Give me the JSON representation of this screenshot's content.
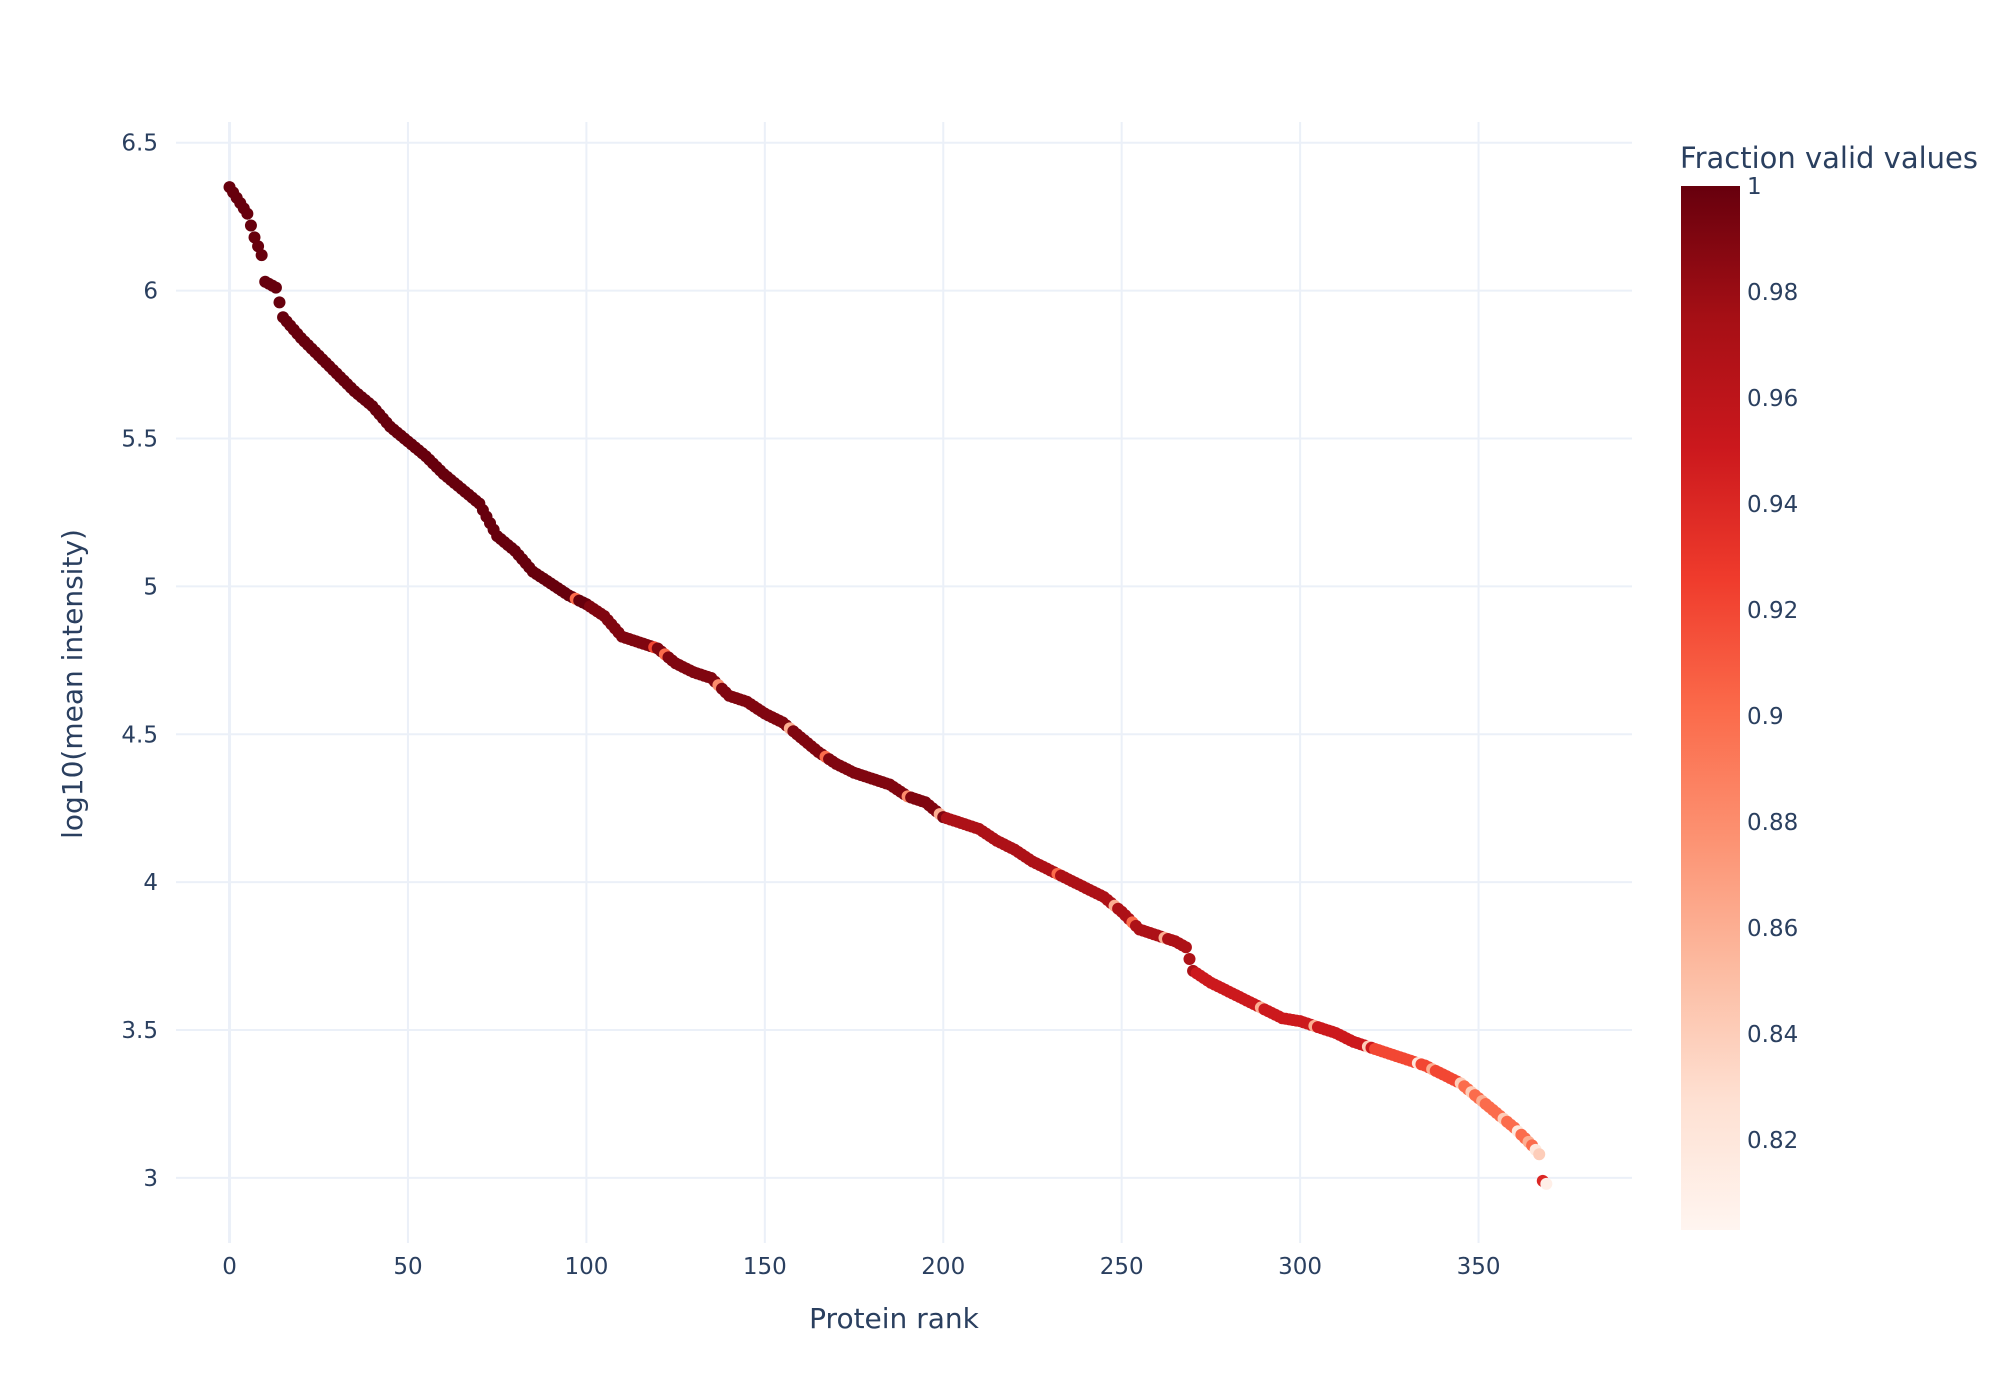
{
  "chart_data": {
    "type": "scatter",
    "title": "",
    "xlabel": "Protein rank",
    "ylabel": "log10(mean intensity)",
    "xlim": [
      -15,
      393
    ],
    "ylim": [
      2.78,
      6.57
    ],
    "x_ticks": [
      0,
      50,
      100,
      150,
      200,
      250,
      300,
      350
    ],
    "y_ticks": [
      3,
      3.5,
      4,
      4.5,
      5,
      5.5,
      6,
      6.5
    ],
    "x_tick_labels": [
      "0",
      "50",
      "100",
      "150",
      "200",
      "250",
      "300",
      "350"
    ],
    "y_tick_labels": [
      "3",
      "3.5",
      "4",
      "4.5",
      "5",
      "5.5",
      "6",
      "6.5"
    ],
    "colorbar": {
      "title": "Fraction valid values",
      "range": [
        0.803,
        1.0
      ],
      "ticks": [
        0.82,
        0.84,
        0.86,
        0.88,
        0.9,
        0.92,
        0.94,
        0.96,
        0.98,
        1
      ],
      "tick_labels": [
        "0.82",
        "0.84",
        "0.86",
        "0.88",
        "0.9",
        "0.92",
        "0.94",
        "0.96",
        "0.98",
        "1"
      ],
      "colorscale": [
        "#fff5f0",
        "#fee0d2",
        "#fcbba1",
        "#fc9272",
        "#fb6a4a",
        "#ef3b2c",
        "#cb181d",
        "#a50f15",
        "#67000d"
      ]
    },
    "grid": true,
    "legend": "colorbar-right",
    "curve_anchors": [
      [
        0,
        6.35
      ],
      [
        5,
        6.26
      ],
      [
        7,
        6.18
      ],
      [
        9,
        6.12
      ],
      [
        10,
        6.03
      ],
      [
        13,
        6.01
      ],
      [
        15,
        5.91
      ],
      [
        20,
        5.84
      ],
      [
        25,
        5.78
      ],
      [
        30,
        5.72
      ],
      [
        35,
        5.66
      ],
      [
        40,
        5.61
      ],
      [
        45,
        5.54
      ],
      [
        50,
        5.49
      ],
      [
        55,
        5.44
      ],
      [
        60,
        5.38
      ],
      [
        65,
        5.33
      ],
      [
        70,
        5.28
      ],
      [
        75,
        5.17
      ],
      [
        80,
        5.12
      ],
      [
        85,
        5.05
      ],
      [
        90,
        5.01
      ],
      [
        95,
        4.97
      ],
      [
        100,
        4.94
      ],
      [
        105,
        4.9
      ],
      [
        110,
        4.83
      ],
      [
        115,
        4.81
      ],
      [
        120,
        4.79
      ],
      [
        125,
        4.74
      ],
      [
        130,
        4.71
      ],
      [
        135,
        4.69
      ],
      [
        140,
        4.63
      ],
      [
        145,
        4.61
      ],
      [
        150,
        4.57
      ],
      [
        155,
        4.54
      ],
      [
        160,
        4.49
      ],
      [
        165,
        4.44
      ],
      [
        170,
        4.4
      ],
      [
        175,
        4.37
      ],
      [
        180,
        4.35
      ],
      [
        185,
        4.33
      ],
      [
        190,
        4.29
      ],
      [
        195,
        4.27
      ],
      [
        200,
        4.22
      ],
      [
        205,
        4.2
      ],
      [
        210,
        4.18
      ],
      [
        215,
        4.14
      ],
      [
        220,
        4.11
      ],
      [
        225,
        4.07
      ],
      [
        230,
        4.04
      ],
      [
        235,
        4.01
      ],
      [
        240,
        3.98
      ],
      [
        245,
        3.95
      ],
      [
        250,
        3.9
      ],
      [
        255,
        3.84
      ],
      [
        260,
        3.82
      ],
      [
        265,
        3.8
      ],
      [
        268,
        3.78
      ],
      [
        270,
        3.7
      ],
      [
        275,
        3.66
      ],
      [
        280,
        3.63
      ],
      [
        285,
        3.6
      ],
      [
        290,
        3.57
      ],
      [
        295,
        3.54
      ],
      [
        300,
        3.53
      ],
      [
        305,
        3.51
      ],
      [
        310,
        3.49
      ],
      [
        315,
        3.46
      ],
      [
        320,
        3.44
      ],
      [
        325,
        3.42
      ],
      [
        330,
        3.4
      ],
      [
        335,
        3.38
      ],
      [
        340,
        3.35
      ],
      [
        345,
        3.32
      ],
      [
        350,
        3.27
      ],
      [
        355,
        3.22
      ],
      [
        360,
        3.17
      ],
      [
        365,
        3.11
      ],
      [
        367,
        3.08
      ],
      [
        368,
        2.99
      ],
      [
        369,
        2.98
      ]
    ],
    "fraction_segments": [
      {
        "range": [
          0,
          100
        ],
        "fraction": 1.0
      },
      {
        "range": [
          101,
          200
        ],
        "fraction": 0.99
      },
      {
        "range": [
          201,
          270
        ],
        "fraction": 0.97
      },
      {
        "range": [
          271,
          320
        ],
        "fraction": 0.95
      },
      {
        "range": [
          321,
          345
        ],
        "fraction": 0.92
      },
      {
        "range": [
          346,
          369
        ],
        "fraction": 0.9
      }
    ],
    "highlight_points": [
      {
        "x": 97,
        "fraction": 0.9
      },
      {
        "x": 119,
        "fraction": 0.92
      },
      {
        "x": 122,
        "fraction": 0.9
      },
      {
        "x": 137,
        "fraction": 0.88
      },
      {
        "x": 157,
        "fraction": 0.86
      },
      {
        "x": 167,
        "fraction": 0.9
      },
      {
        "x": 190,
        "fraction": 0.88
      },
      {
        "x": 199,
        "fraction": 0.86
      },
      {
        "x": 232,
        "fraction": 0.9
      },
      {
        "x": 248,
        "fraction": 0.86
      },
      {
        "x": 253,
        "fraction": 0.9
      },
      {
        "x": 262,
        "fraction": 0.86
      },
      {
        "x": 289,
        "fraction": 0.86
      },
      {
        "x": 304,
        "fraction": 0.86
      },
      {
        "x": 319,
        "fraction": 0.84
      },
      {
        "x": 333,
        "fraction": 0.82
      },
      {
        "x": 337,
        "fraction": 0.86
      },
      {
        "x": 345,
        "fraction": 0.84
      },
      {
        "x": 348,
        "fraction": 0.84
      },
      {
        "x": 351,
        "fraction": 0.86
      },
      {
        "x": 357,
        "fraction": 0.84
      },
      {
        "x": 361,
        "fraction": 0.82
      },
      {
        "x": 364,
        "fraction": 0.86
      },
      {
        "x": 366,
        "fraction": 0.82
      },
      {
        "x": 367,
        "fraction": 0.84
      },
      {
        "x": 368,
        "fraction": 0.94
      },
      {
        "x": 369,
        "fraction": 0.81
      }
    ]
  }
}
